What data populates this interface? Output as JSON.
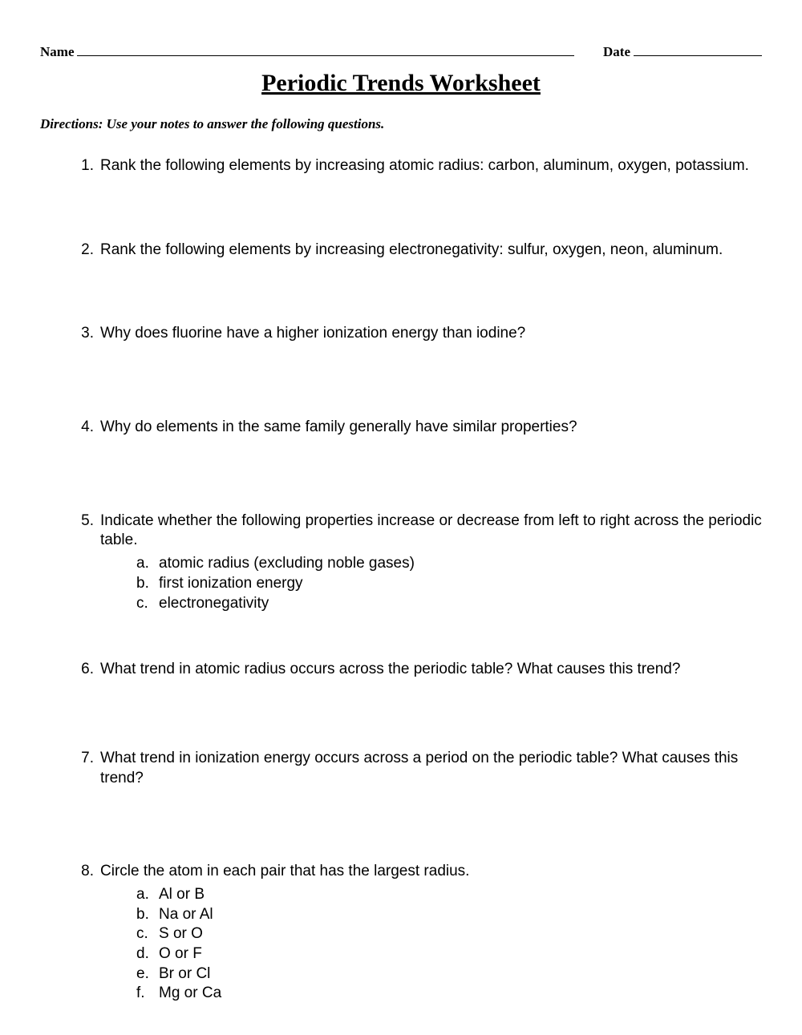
{
  "header": {
    "name_label": "Name",
    "date_label": "Date"
  },
  "title": "Periodic Trends Worksheet",
  "directions": "Directions:  Use your notes to answer the following questions.",
  "questions": [
    {
      "num": "1.",
      "text": "Rank the following elements by increasing atomic radius:  carbon, aluminum, oxygen, potassium.",
      "sub": []
    },
    {
      "num": "2.",
      "text": "Rank the following elements by increasing electronegativity:  sulfur, oxygen, neon, aluminum.",
      "sub": []
    },
    {
      "num": "3.",
      "text": "Why does fluorine have a higher ionization energy than iodine?",
      "sub": []
    },
    {
      "num": "4.",
      "text": "Why do elements in the same family generally have similar properties?",
      "sub": []
    },
    {
      "num": "5.",
      "text": "Indicate whether the following properties increase or decrease from left to right across the periodic table.",
      "sub": [
        {
          "label": "a.",
          "text": "atomic radius (excluding noble gases)"
        },
        {
          "label": "b.",
          "text": "first ionization energy"
        },
        {
          "label": "c.",
          "text": "electronegativity"
        }
      ]
    },
    {
      "num": "6.",
      "text": "What trend in atomic radius occurs across the periodic table?  What causes this trend?",
      "sub": []
    },
    {
      "num": "7.",
      "text": "What trend in ionization energy occurs across a period on the periodic table?  What causes this trend?",
      "sub": []
    },
    {
      "num": "8.",
      "text": "Circle the atom in each pair that has the largest radius.",
      "sub": [
        {
          "label": "a.",
          "text": "Al  or  B"
        },
        {
          "label": "b.",
          "text": "Na  or  Al"
        },
        {
          "label": "c.",
          "text": "S  or  O"
        },
        {
          "label": "d.",
          "text": "O  or  F"
        },
        {
          "label": "e.",
          "text": "Br  or  Cl"
        },
        {
          "label": "f.",
          "text": "Mg  or  Ca"
        }
      ]
    }
  ],
  "spacing": {
    "q3_margin": "92px",
    "q4_margin": "92px",
    "q5_margin": "58px",
    "q6_margin": "86px",
    "q7_margin": "92px"
  }
}
